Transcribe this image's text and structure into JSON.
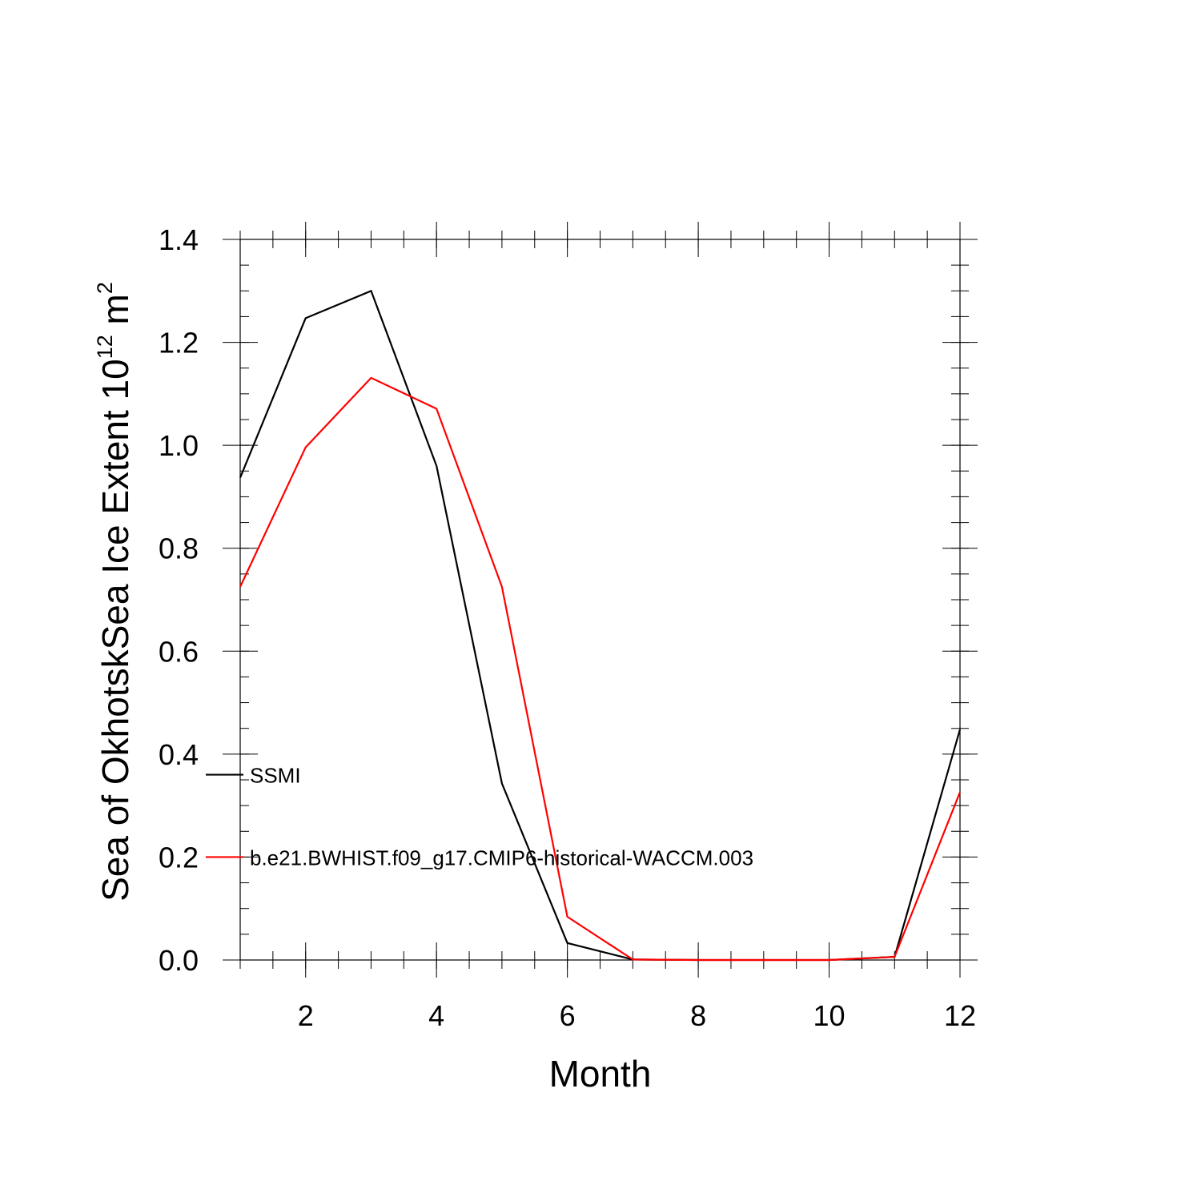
{
  "chart_data": {
    "type": "line",
    "xlabel": "Month",
    "ylabel_main": "Sea of OkhotskSea Ice Extent 10",
    "ylabel_exponent": "12",
    "ylabel_unit": " m",
    "ylabel_unit_exponent": "2",
    "xlim": [
      1,
      12
    ],
    "ylim": [
      0,
      1.4
    ],
    "x": [
      1,
      2,
      3,
      4,
      5,
      6,
      7,
      8,
      9,
      10,
      11,
      12
    ],
    "x_ticks": [
      2,
      4,
      6,
      8,
      10,
      12
    ],
    "x_tick_labels": [
      "2",
      "4",
      "6",
      "8",
      "10",
      "12"
    ],
    "y_ticks": [
      0,
      0.2,
      0.4,
      0.6,
      0.8,
      1.0,
      1.2,
      1.4
    ],
    "y_tick_labels": [
      "0.0",
      "0.2",
      "0.4",
      "0.6",
      "0.8",
      "1.0",
      "1.2",
      "1.4"
    ],
    "grid": false,
    "legend_placement": "inside-left",
    "series": [
      {
        "name": "SSMI",
        "color": "#000000",
        "values": [
          0.937,
          1.247,
          1.3,
          0.96,
          0.343,
          0.033,
          0.001,
          0.0,
          0.0,
          0.0,
          0.006,
          0.448
        ]
      },
      {
        "name": "b.e21.BWHIST.f09_g17.CMIP6-historical-WACCM.003",
        "color": "#ff0000",
        "values": [
          0.725,
          0.996,
          1.131,
          1.071,
          0.725,
          0.084,
          0.001,
          0.0,
          0.0,
          0.0,
          0.006,
          0.326
        ]
      }
    ]
  }
}
